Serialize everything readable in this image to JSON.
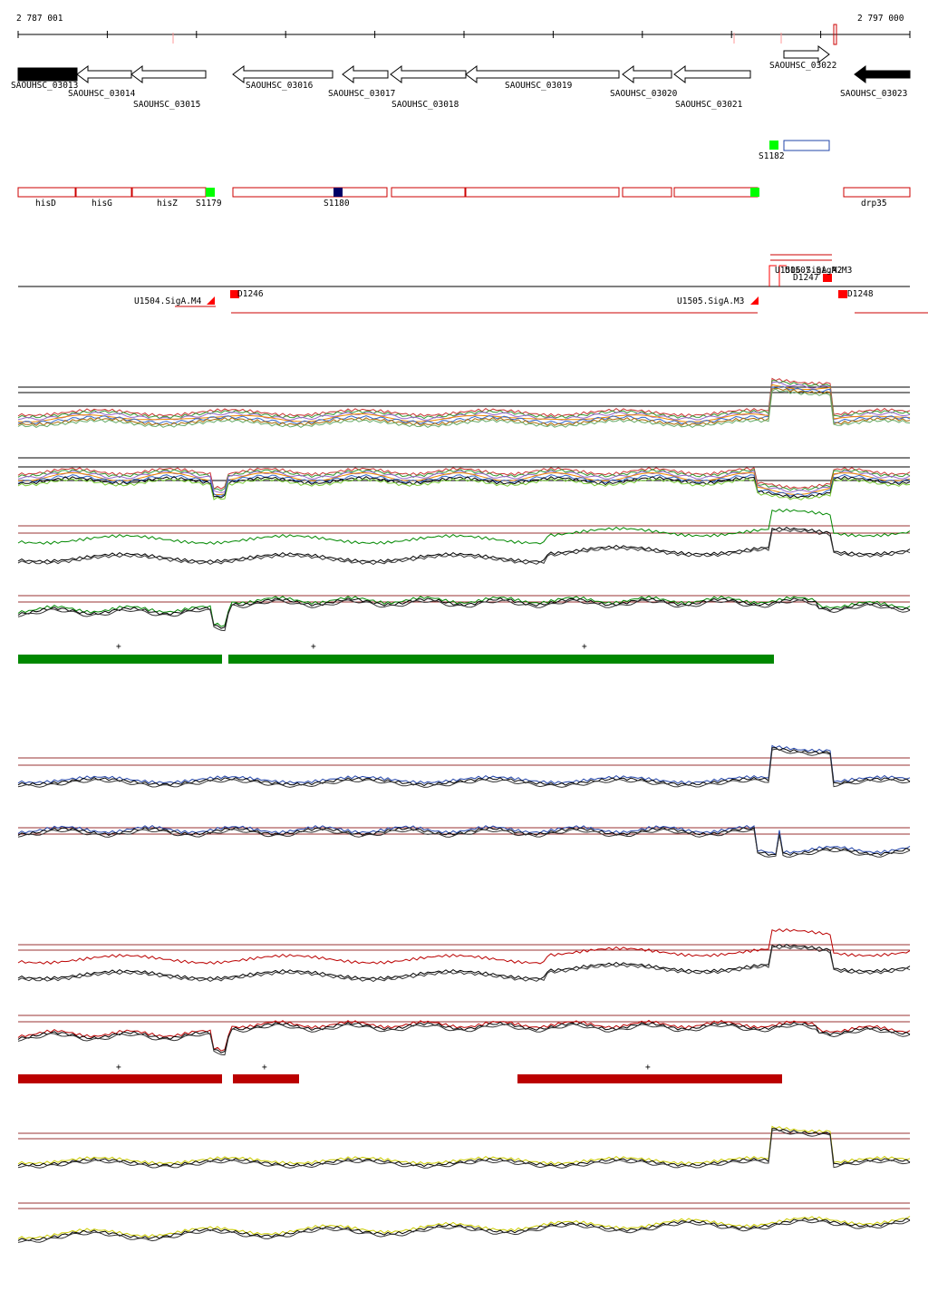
{
  "ruler": {
    "start": "2 787 001",
    "end": "2 797 000"
  },
  "genes": [
    "SAOUHSC_03013",
    "SAOUHSC_03014",
    "SAOUHSC_03015",
    "SAOUHSC_03016",
    "SAOUHSC_03017",
    "SAOUHSC_03018",
    "SAOUHSC_03019",
    "SAOUHSC_03020",
    "SAOUHSC_03021",
    "SAOUHSC_03022",
    "SAOUHSC_03023"
  ],
  "features": [
    "hisD",
    "hisG",
    "hisZ",
    "S1179",
    "S1180",
    "S1182",
    "drp35"
  ],
  "promoters": [
    "U1504.SigA.M4",
    "D1246",
    "U1505.SigA.M3",
    "U1506.SigA.M2",
    "U1507.SigA.M3",
    "D1247",
    "D1248"
  ],
  "segment_marks": [
    "+",
    "+",
    "+",
    "+",
    "+",
    "+"
  ]
}
